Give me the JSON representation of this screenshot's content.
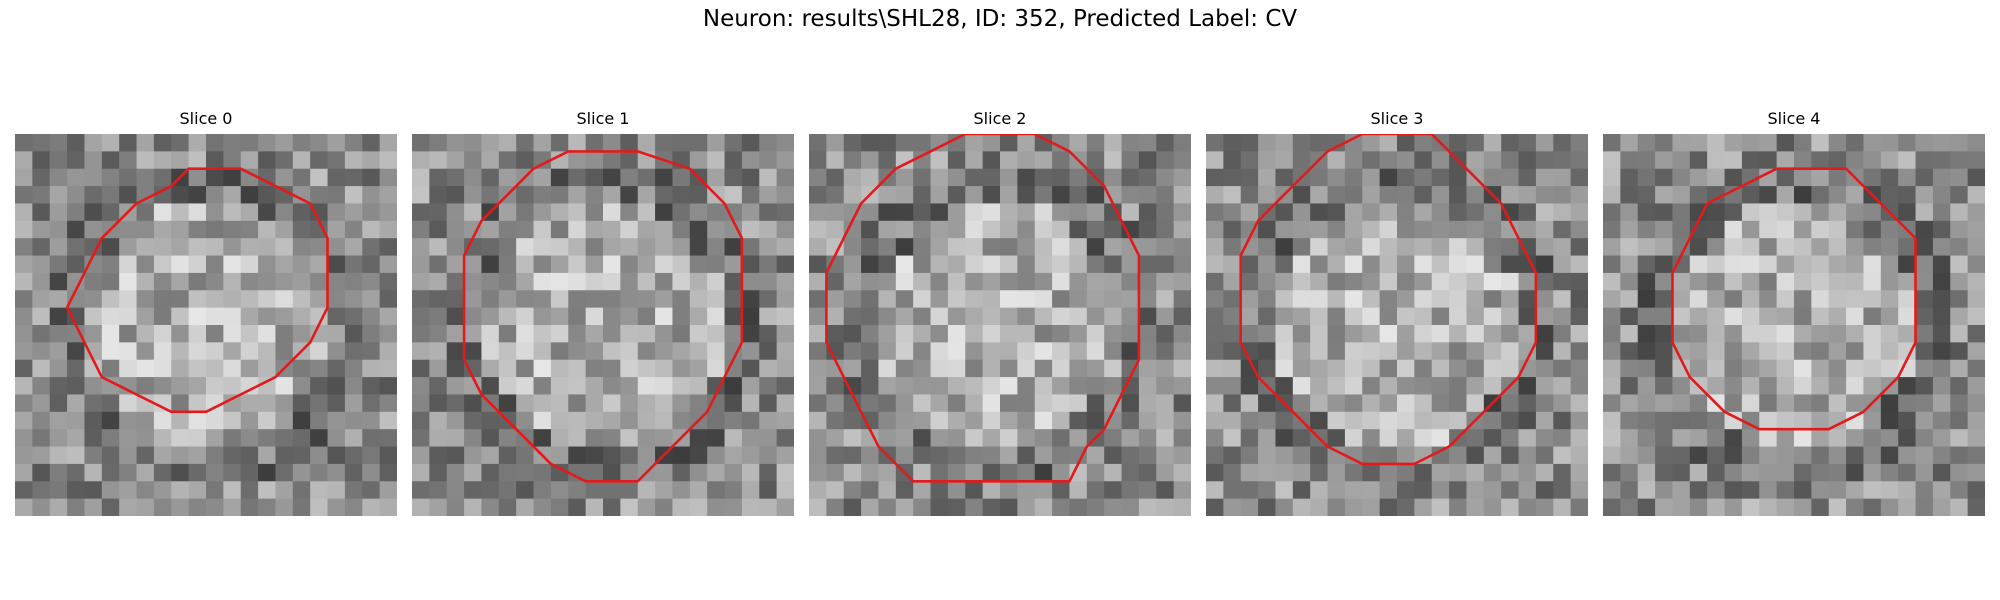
{
  "figure": {
    "title": "Neuron: results\\SHL28, ID: 352, Predicted Label: CV"
  },
  "panels": [
    {
      "title": "Slice 0",
      "seed": 11,
      "contour_color": "#e31a1c",
      "contour": [
        [
          10,
          2
        ],
        [
          13,
          2
        ],
        [
          15,
          3
        ],
        [
          17,
          4
        ],
        [
          18,
          6
        ],
        [
          18,
          8
        ],
        [
          18,
          10
        ],
        [
          17,
          12
        ],
        [
          15,
          14
        ],
        [
          13,
          15
        ],
        [
          11,
          16
        ],
        [
          9,
          16
        ],
        [
          7,
          15
        ],
        [
          5,
          14
        ],
        [
          4,
          12
        ],
        [
          3,
          10
        ],
        [
          4,
          8
        ],
        [
          5,
          6
        ],
        [
          7,
          4
        ],
        [
          9,
          3
        ]
      ]
    },
    {
      "title": "Slice 1",
      "seed": 23,
      "contour_color": "#e31a1c",
      "contour": [
        [
          9,
          1
        ],
        [
          13,
          1
        ],
        [
          16,
          2
        ],
        [
          18,
          4
        ],
        [
          19,
          6
        ],
        [
          19,
          8
        ],
        [
          19,
          10
        ],
        [
          19,
          12
        ],
        [
          18,
          14
        ],
        [
          17,
          16
        ],
        [
          16,
          17
        ],
        [
          14,
          19
        ],
        [
          13,
          20
        ],
        [
          10,
          20
        ],
        [
          8,
          19
        ],
        [
          6,
          17
        ],
        [
          4,
          15
        ],
        [
          3,
          13
        ],
        [
          3,
          11
        ],
        [
          3,
          9
        ],
        [
          3,
          7
        ],
        [
          4,
          5
        ],
        [
          6,
          3
        ],
        [
          7,
          2
        ]
      ]
    },
    {
      "title": "Slice 2",
      "seed": 37,
      "contour_color": "#e31a1c",
      "contour": [
        [
          9,
          0
        ],
        [
          13,
          0
        ],
        [
          15,
          1
        ],
        [
          17,
          3
        ],
        [
          18,
          5
        ],
        [
          19,
          7
        ],
        [
          19,
          9
        ],
        [
          19,
          11
        ],
        [
          19,
          13
        ],
        [
          18,
          15
        ],
        [
          17,
          17
        ],
        [
          16,
          18
        ],
        [
          15,
          20
        ],
        [
          6,
          20
        ],
        [
          4,
          18
        ],
        [
          3,
          16
        ],
        [
          2,
          14
        ],
        [
          1,
          12
        ],
        [
          1,
          8
        ],
        [
          2,
          6
        ],
        [
          3,
          4
        ],
        [
          5,
          2
        ],
        [
          7,
          1
        ]
      ]
    },
    {
      "title": "Slice 3",
      "seed": 53,
      "contour_color": "#e31a1c",
      "contour": [
        [
          7,
          1
        ],
        [
          9,
          0
        ],
        [
          13,
          0
        ],
        [
          15,
          2
        ],
        [
          17,
          4
        ],
        [
          18,
          6
        ],
        [
          19,
          8
        ],
        [
          19,
          10
        ],
        [
          19,
          12
        ],
        [
          18,
          14
        ],
        [
          16,
          16
        ],
        [
          14,
          18
        ],
        [
          12,
          19
        ],
        [
          9,
          19
        ],
        [
          7,
          18
        ],
        [
          5,
          16
        ],
        [
          3,
          14
        ],
        [
          2,
          12
        ],
        [
          2,
          10
        ],
        [
          2,
          7
        ],
        [
          3,
          5
        ],
        [
          5,
          3
        ]
      ]
    },
    {
      "title": "Slice 4",
      "seed": 71,
      "contour_color": "#e31a1c",
      "contour": [
        [
          8,
          3
        ],
        [
          10,
          2
        ],
        [
          14,
          2
        ],
        [
          16,
          4
        ],
        [
          18,
          6
        ],
        [
          18,
          8
        ],
        [
          18,
          10
        ],
        [
          18,
          12
        ],
        [
          17,
          14
        ],
        [
          15,
          16
        ],
        [
          13,
          17
        ],
        [
          9,
          17
        ],
        [
          7,
          16
        ],
        [
          5,
          14
        ],
        [
          4,
          12
        ],
        [
          4,
          10
        ],
        [
          4,
          8
        ],
        [
          5,
          6
        ],
        [
          6,
          4
        ]
      ]
    }
  ]
}
